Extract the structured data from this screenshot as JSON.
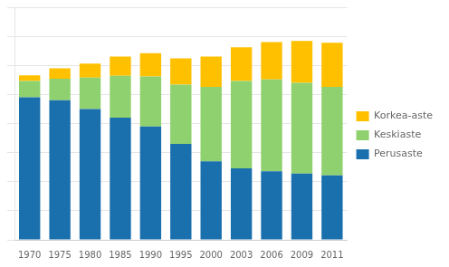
{
  "chart_data": {
    "type": "bar",
    "categories": [
      "1970",
      "1975",
      "1980",
      "1985",
      "1990",
      "1995",
      "2000",
      "2003",
      "2006",
      "2009",
      "2011"
    ],
    "series": [
      {
        "name": "Perusaste",
        "color": "#1a6fad",
        "values": [
          2450,
          2400,
          2250,
          2100,
          1950,
          1650,
          1350,
          1230,
          1180,
          1140,
          1110
        ]
      },
      {
        "name": "Keskiaste",
        "color": "#8fd16e",
        "values": [
          280,
          370,
          540,
          720,
          860,
          1020,
          1280,
          1500,
          1580,
          1560,
          1520
        ]
      },
      {
        "name": "Korkea-aste",
        "color": "#ffc000",
        "values": [
          100,
          180,
          240,
          330,
          400,
          450,
          520,
          580,
          640,
          720,
          760
        ]
      }
    ],
    "stacked": true,
    "ylim": [
      0,
      4000
    ],
    "yticks": [
      0,
      500,
      1000,
      1500,
      2000,
      2500,
      3000,
      3500,
      4000
    ],
    "grid": true,
    "tick_labels": "x",
    "legend": "right"
  }
}
